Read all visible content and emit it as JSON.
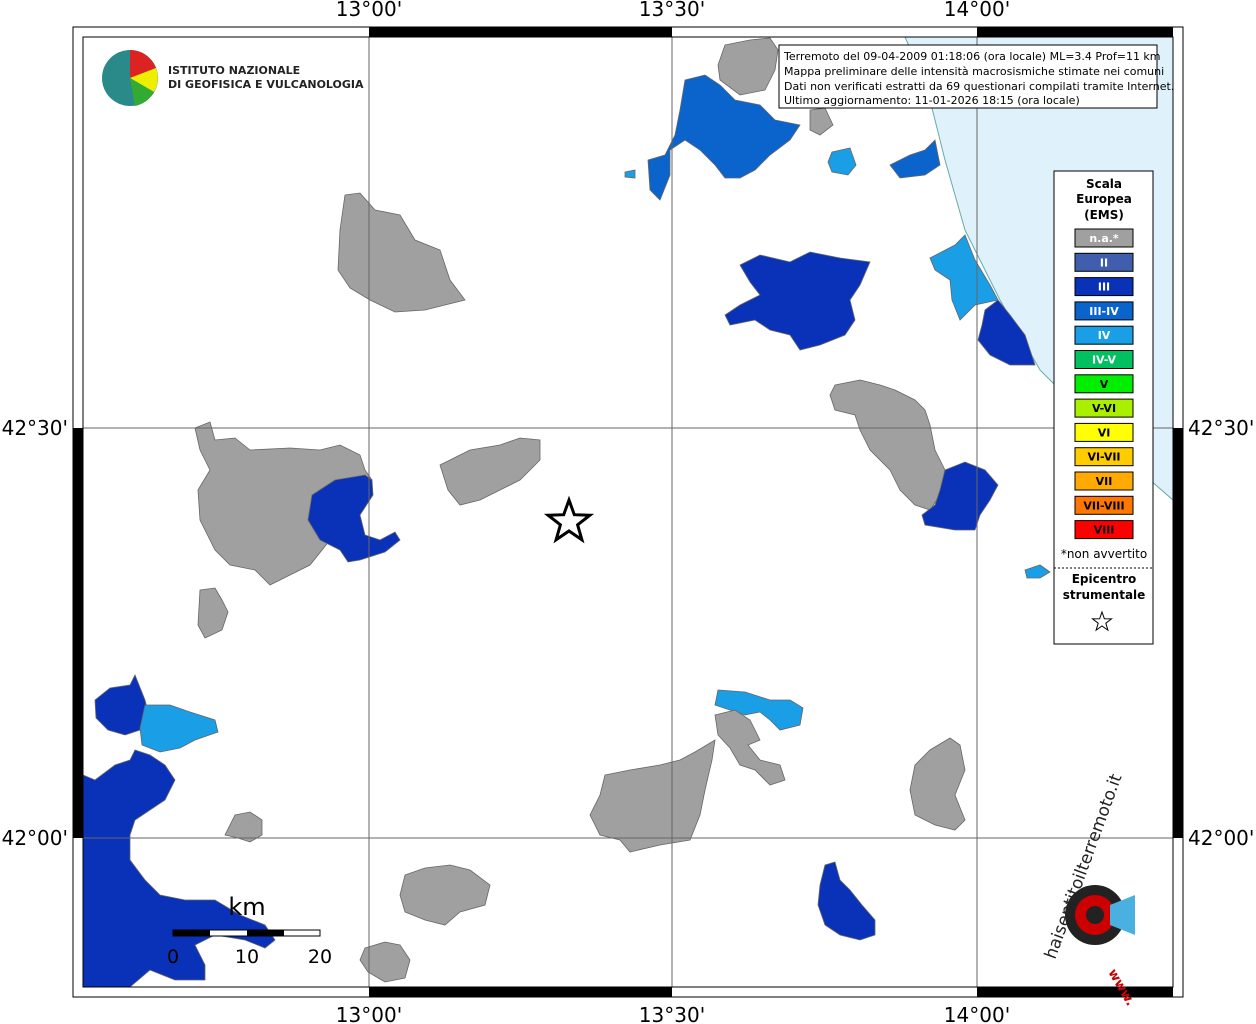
{
  "logo": {
    "line1": "ISTITUTO NAZIONALE",
    "line2": "DI GEOFISICA E VULCANOLOGIA"
  },
  "axes": {
    "lon_labels": [
      "13°00'",
      "13°30'",
      "14°00'"
    ],
    "lat_labels": [
      "42°30'",
      "42°00'"
    ]
  },
  "info": [
    "Terremoto del 09-04-2009 01:18:06 (ora locale) ML=3.4 Prof=11 km",
    "Mappa preliminare delle intensità macrosismiche stimate nei comuni",
    "Dati non verificati estratti da 69 questionari compilati tramite Internet.",
    "Ultimo aggiornamento: 11-01-2026 18:15 (ora locale)"
  ],
  "legend": {
    "title": [
      "Scala",
      "Europea",
      "(EMS)"
    ],
    "items": [
      {
        "label": "n.a.*",
        "color": "#a0a0a0"
      },
      {
        "label": "II",
        "color": "#3f5fae"
      },
      {
        "label": "III",
        "color": "#0a32b8"
      },
      {
        "label": "III-IV",
        "color": "#0a64cc"
      },
      {
        "label": "IV",
        "color": "#1a9ee6"
      },
      {
        "label": "IV-V",
        "color": "#00c060"
      },
      {
        "label": "V",
        "color": "#00ee00"
      },
      {
        "label": "V-VI",
        "color": "#aaee00"
      },
      {
        "label": "VI",
        "color": "#ffff00"
      },
      {
        "label": "VI-VII",
        "color": "#ffcc00"
      },
      {
        "label": "VII",
        "color": "#ffaa00"
      },
      {
        "label": "VII-VIII",
        "color": "#ff7700"
      },
      {
        "label": "VIII",
        "color": "#ff0000"
      }
    ],
    "note": "*non avvertito",
    "epicenter": [
      "Epicentro",
      "strumentale"
    ]
  },
  "scale_bar": {
    "unit": "km",
    "labels": [
      "0",
      "10",
      "20"
    ]
  },
  "site_logo": {
    "name": "haisentitoilterremoto.it",
    "prefix": "www."
  }
}
